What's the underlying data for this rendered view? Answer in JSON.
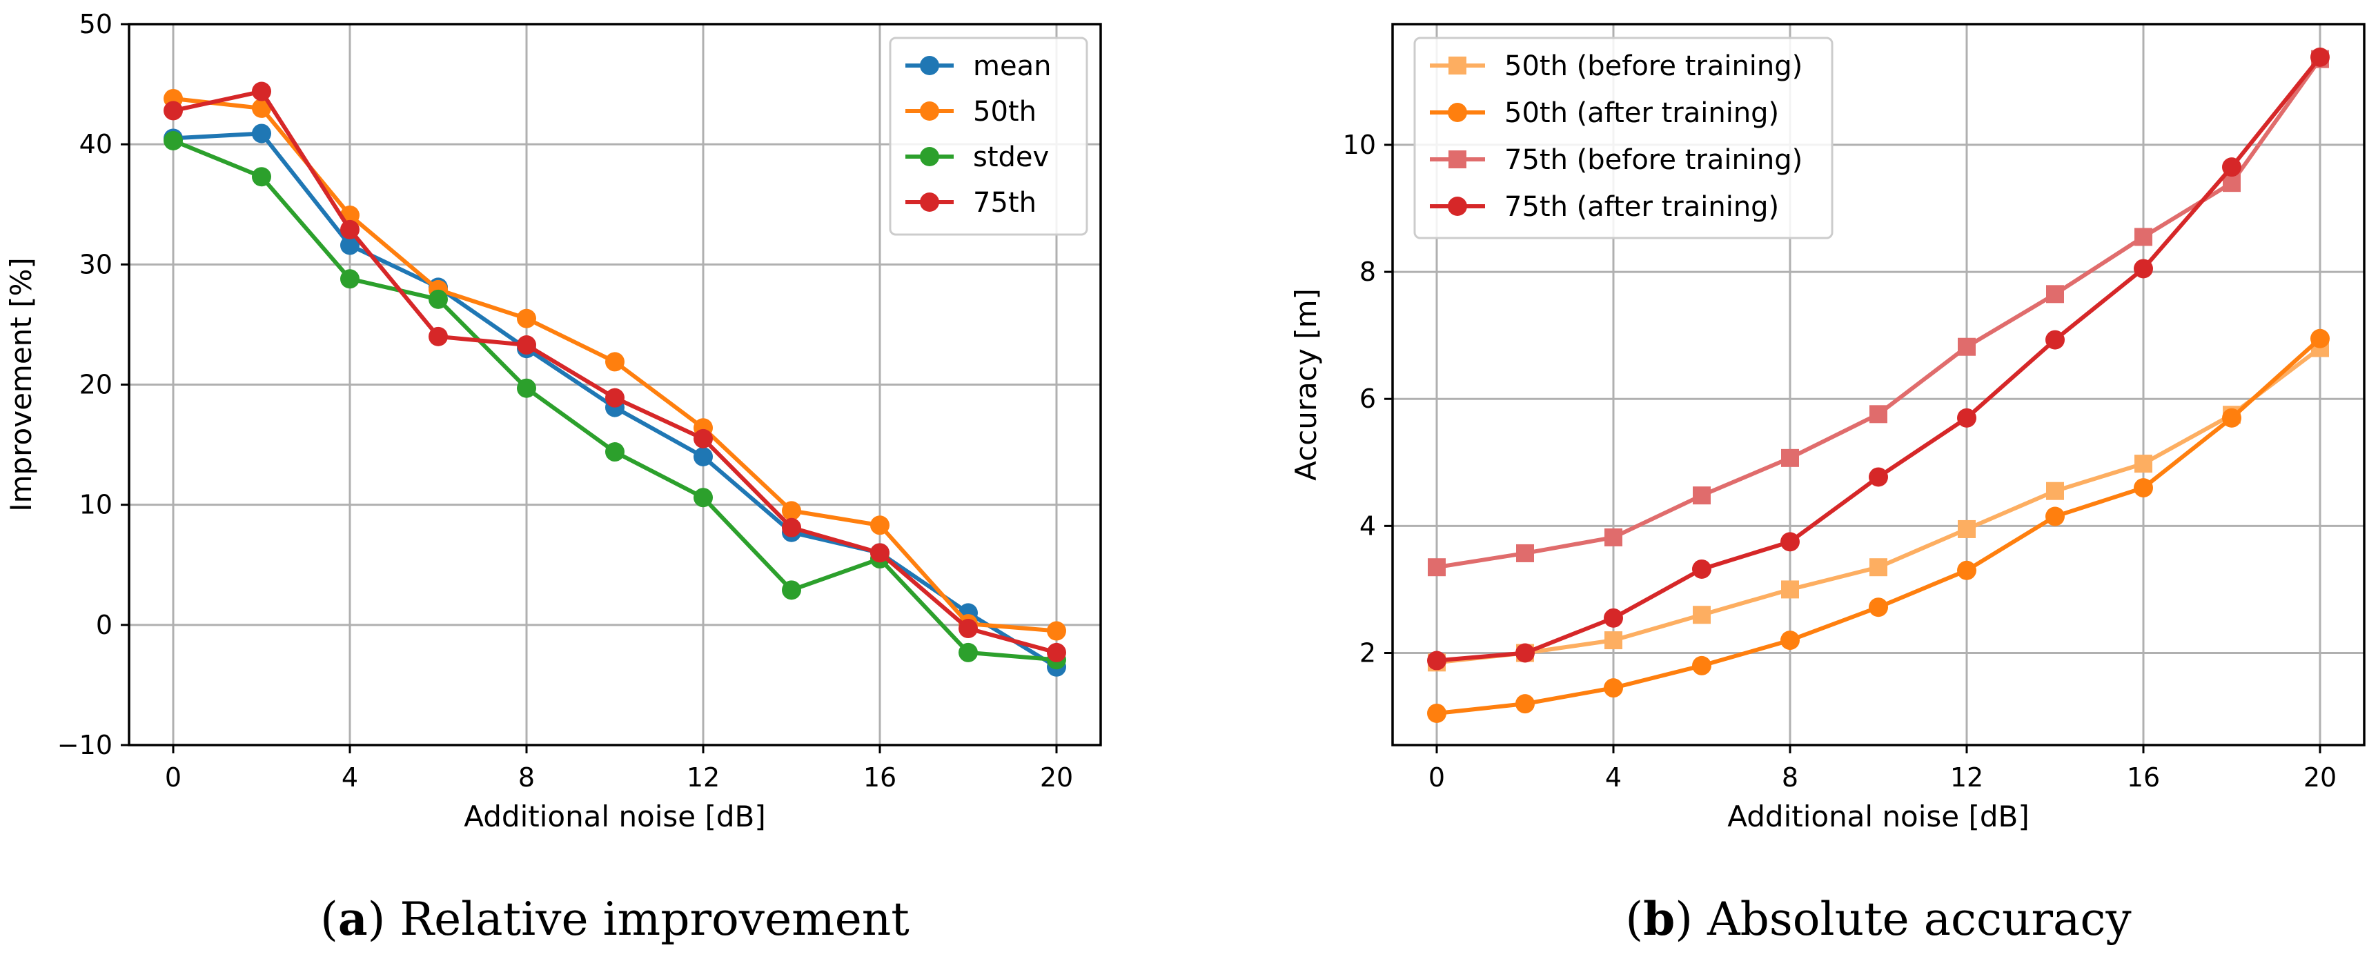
{
  "chart_data": [
    {
      "type": "line",
      "x": [
        0,
        2,
        4,
        6,
        8,
        10,
        12,
        14,
        16,
        18,
        20
      ],
      "xlabel": "Additional noise [dB]",
      "ylabel": "Improvement [%]",
      "xlim": [
        -1,
        21
      ],
      "ylim": [
        -10,
        50
      ],
      "xticks": [
        0,
        4,
        8,
        12,
        16,
        20
      ],
      "yticks": [
        -10,
        0,
        10,
        20,
        30,
        40,
        50
      ],
      "ytick_labels": [
        "−10",
        "0",
        "10",
        "20",
        "30",
        "40",
        "50"
      ],
      "grid": true,
      "legend_position": "top-right",
      "caption_letter": "a",
      "caption_text": "Relative improvement",
      "series": [
        {
          "name": "mean",
          "color": "#1f77b4",
          "marker": "circle",
          "values": [
            40.5,
            40.9,
            31.6,
            28.1,
            23.0,
            18.1,
            14.0,
            7.7,
            6.0,
            1.0,
            -3.5
          ]
        },
        {
          "name": "50th",
          "color": "#ff7f0e",
          "marker": "circle",
          "values": [
            43.8,
            43.0,
            34.1,
            27.9,
            25.5,
            21.9,
            16.4,
            9.5,
            8.3,
            0.1,
            -0.5
          ]
        },
        {
          "name": "stdev",
          "color": "#2ca02c",
          "marker": "circle",
          "values": [
            40.3,
            37.3,
            28.8,
            27.1,
            19.7,
            14.4,
            10.6,
            2.9,
            5.5,
            -2.3,
            -2.9
          ]
        },
        {
          "name": "75th",
          "color": "#d62728",
          "marker": "circle",
          "values": [
            42.8,
            44.4,
            32.9,
            24.0,
            23.3,
            18.9,
            15.5,
            8.1,
            6.0,
            -0.3,
            -2.3
          ]
        }
      ]
    },
    {
      "type": "line",
      "x": [
        0,
        2,
        4,
        6,
        8,
        10,
        12,
        14,
        16,
        18,
        20
      ],
      "xlabel": "Additional noise [dB]",
      "ylabel": "Accuracy [m]",
      "xlim": [
        -1,
        21
      ],
      "ylim": [
        0.55,
        11.9
      ],
      "xticks": [
        0,
        4,
        8,
        12,
        16,
        20
      ],
      "yticks": [
        2,
        4,
        6,
        8,
        10
      ],
      "ytick_labels": [
        "2",
        "4",
        "6",
        "8",
        "10"
      ],
      "grid": true,
      "legend_position": "top-left",
      "caption_letter": "b",
      "caption_text": "Absolute accuracy",
      "series": [
        {
          "name": "50th (before training)",
          "color": "#fdae61",
          "marker": "square",
          "values": [
            1.85,
            2.0,
            2.2,
            2.6,
            3.0,
            3.35,
            3.95,
            4.55,
            4.98,
            5.75,
            6.8
          ]
        },
        {
          "name": "50th (after training)",
          "color": "#ff7f0e",
          "marker": "circle",
          "values": [
            1.05,
            1.2,
            1.45,
            1.8,
            2.2,
            2.72,
            3.3,
            4.15,
            4.6,
            5.7,
            6.95
          ]
        },
        {
          "name": "75th (before training)",
          "color": "#e06c6c",
          "marker": "square",
          "values": [
            3.35,
            3.57,
            3.82,
            4.48,
            5.07,
            5.76,
            6.82,
            7.65,
            8.55,
            9.4,
            11.35
          ]
        },
        {
          "name": "75th (after training)",
          "color": "#d62728",
          "marker": "circle",
          "values": [
            1.88,
            2.0,
            2.55,
            3.32,
            3.75,
            4.77,
            5.7,
            6.93,
            8.05,
            9.65,
            11.38
          ]
        }
      ]
    }
  ]
}
